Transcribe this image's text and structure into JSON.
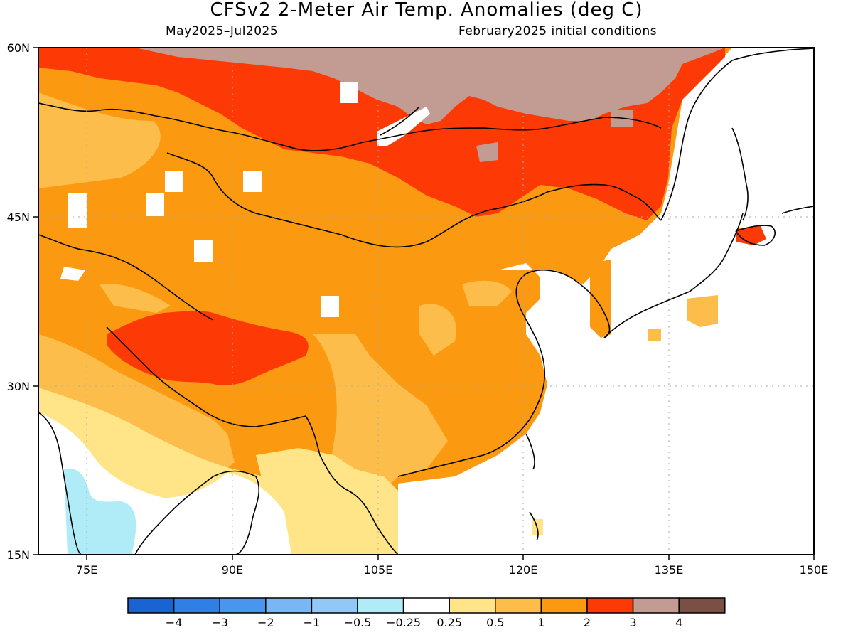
{
  "title": "CFSv2 2-Meter Air Temp. Anomalies (deg C)",
  "subtitle_left": "May2025–Jul2025",
  "subtitle_right": "February2025 initial conditions",
  "map": {
    "lon_range": [
      70,
      150
    ],
    "lat_range": [
      15,
      60
    ],
    "lon_ticks": [
      "75E",
      "90E",
      "105E",
      "120E",
      "135E",
      "150E"
    ],
    "lat_ticks": [
      "60N",
      "45N",
      "30N",
      "15N"
    ]
  },
  "legend": {
    "bins": [
      {
        "color": "#1a64d2"
      },
      {
        "color": "#2f7fe4"
      },
      {
        "color": "#4a96ee"
      },
      {
        "color": "#78b6f4"
      },
      {
        "color": "#92c8f6"
      },
      {
        "color": "#b0ecf8"
      },
      {
        "color": "#ffffff"
      },
      {
        "color": "#ffe588"
      },
      {
        "color": "#fdbd4a"
      },
      {
        "color": "#fb9a10"
      },
      {
        "color": "#fd3a06"
      },
      {
        "color": "#c29c92"
      },
      {
        "color": "#7a5044"
      }
    ],
    "labels": [
      "−4",
      "−3",
      "−2",
      "−1",
      "−0.5",
      "−0.25",
      "0.25",
      "0.5",
      "1",
      "2",
      "3",
      "4"
    ]
  }
}
